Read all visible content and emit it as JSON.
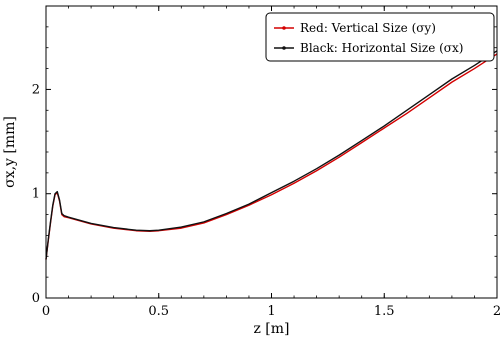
{
  "chart_data": {
    "type": "line",
    "xlabel": "z [m]",
    "ylabel": "σx,y [mm]",
    "xlim": [
      0,
      2
    ],
    "ylim": [
      0,
      2.8
    ],
    "x_ticks": [
      "0",
      "0.5",
      "1",
      "1.5",
      "2"
    ],
    "y_ticks": [
      "0",
      "1",
      "2"
    ],
    "grid": false,
    "legend_position": "top-right",
    "series": [
      {
        "name": "Red: Vertical Size (σy)",
        "color": "#d40000",
        "x": [
          0,
          0.01,
          0.02,
          0.03,
          0.04,
          0.05,
          0.06,
          0.07,
          0.08,
          0.1,
          0.15,
          0.2,
          0.3,
          0.4,
          0.46,
          0.5,
          0.6,
          0.7,
          0.8,
          0.9,
          1.0,
          1.1,
          1.2,
          1.3,
          1.4,
          1.5,
          1.6,
          1.7,
          1.8,
          1.9,
          2.0
        ],
        "y": [
          0.37,
          0.55,
          0.72,
          0.88,
          0.99,
          1.01,
          0.93,
          0.8,
          0.78,
          0.77,
          0.74,
          0.71,
          0.67,
          0.645,
          0.64,
          0.645,
          0.67,
          0.72,
          0.8,
          0.89,
          0.99,
          1.1,
          1.22,
          1.35,
          1.49,
          1.63,
          1.77,
          1.92,
          2.07,
          2.2,
          2.34
        ]
      },
      {
        "name": "Black: Horizontal Size (σx)",
        "color": "#111111",
        "x": [
          0,
          0.01,
          0.02,
          0.03,
          0.04,
          0.05,
          0.06,
          0.07,
          0.08,
          0.1,
          0.15,
          0.2,
          0.3,
          0.4,
          0.46,
          0.5,
          0.6,
          0.7,
          0.8,
          0.9,
          1.0,
          1.1,
          1.2,
          1.3,
          1.4,
          1.5,
          1.6,
          1.7,
          1.8,
          1.9,
          2.0
        ],
        "y": [
          0.37,
          0.56,
          0.73,
          0.89,
          1.0,
          1.02,
          0.94,
          0.81,
          0.79,
          0.775,
          0.745,
          0.715,
          0.675,
          0.65,
          0.645,
          0.65,
          0.68,
          0.73,
          0.81,
          0.9,
          1.01,
          1.12,
          1.24,
          1.37,
          1.51,
          1.65,
          1.8,
          1.95,
          2.1,
          2.23,
          2.37
        ]
      }
    ]
  }
}
